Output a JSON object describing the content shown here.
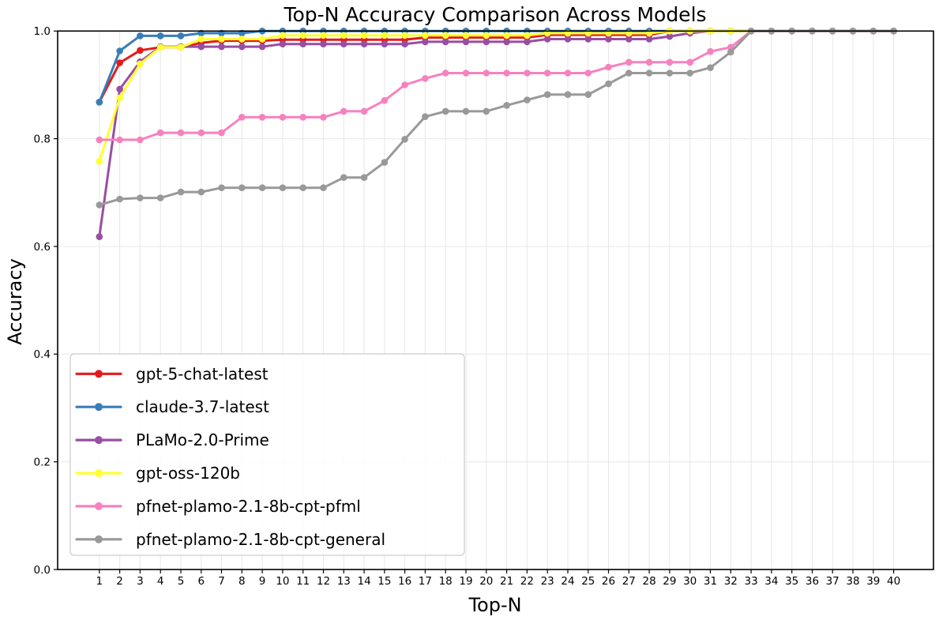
{
  "chart_data": {
    "type": "line",
    "title": "Top-N Accuracy Comparison Across Models",
    "xlabel": "Top-N",
    "ylabel": "Accuracy",
    "marker": "circle",
    "grid": true,
    "legend_position": "lower left",
    "xlim": [
      -1.05,
      41.95
    ],
    "ylim": [
      0.0,
      1.0
    ],
    "x_ticks": [
      1,
      2,
      3,
      4,
      5,
      6,
      7,
      8,
      9,
      10,
      11,
      12,
      13,
      14,
      15,
      16,
      17,
      18,
      19,
      20,
      21,
      22,
      23,
      24,
      25,
      26,
      27,
      28,
      29,
      30,
      31,
      32,
      33,
      34,
      35,
      36,
      37,
      38,
      39,
      40
    ],
    "y_tick_labels": [
      "0.0",
      "0.2",
      "0.4",
      "0.6",
      "0.8",
      "1.0"
    ],
    "y_ticks": [
      0.0,
      0.2,
      0.4,
      0.6,
      0.8,
      1.0
    ],
    "axis_color": "#000000",
    "grid_color": "#e7e7e7",
    "series": [
      {
        "name": "gpt-5-chat-latest",
        "color": "#e41a1c",
        "values": [
          0.868,
          0.941,
          0.964,
          0.97,
          0.97,
          0.978,
          0.982,
          0.982,
          0.982,
          0.984,
          0.984,
          0.984,
          0.984,
          0.984,
          0.984,
          0.984,
          0.988,
          0.988,
          0.988,
          0.988,
          0.988,
          0.988,
          0.993,
          0.993,
          0.993,
          0.993,
          0.993,
          0.993,
          1.0,
          1.0,
          1.0,
          1.0,
          1.0,
          1.0,
          1.0,
          1.0,
          1.0,
          1.0,
          1.0,
          1.0
        ]
      },
      {
        "name": "claude-3.7-latest",
        "color": "#377eb8",
        "values": [
          0.868,
          0.963,
          0.991,
          0.991,
          0.991,
          0.996,
          0.996,
          0.996,
          1.0,
          1.0,
          1.0,
          1.0,
          1.0,
          1.0,
          1.0,
          1.0,
          1.0,
          1.0,
          1.0,
          1.0,
          1.0,
          1.0,
          1.0,
          1.0,
          1.0,
          1.0,
          1.0,
          1.0,
          1.0,
          1.0,
          1.0,
          1.0,
          1.0,
          1.0,
          1.0,
          1.0,
          1.0,
          1.0,
          1.0,
          1.0
        ]
      },
      {
        "name": "PLaMo-2.0-Prime",
        "color": "#984ea3",
        "values": [
          0.618,
          0.892,
          0.943,
          0.971,
          0.971,
          0.971,
          0.971,
          0.971,
          0.971,
          0.976,
          0.976,
          0.976,
          0.976,
          0.976,
          0.976,
          0.976,
          0.98,
          0.98,
          0.98,
          0.98,
          0.98,
          0.98,
          0.985,
          0.985,
          0.985,
          0.985,
          0.985,
          0.985,
          0.99,
          0.996,
          1.0,
          1.0,
          1.0,
          1.0,
          1.0,
          1.0,
          1.0,
          1.0,
          1.0,
          1.0
        ]
      },
      {
        "name": "gpt-oss-120b",
        "color": "#ffff33",
        "values": [
          0.758,
          0.876,
          0.939,
          0.97,
          0.97,
          0.985,
          0.985,
          0.985,
          0.985,
          0.992,
          0.992,
          0.992,
          0.992,
          0.992,
          0.992,
          0.992,
          0.992,
          0.992,
          0.992,
          0.992,
          0.992,
          0.992,
          0.996,
          0.996,
          0.996,
          0.996,
          0.996,
          0.996,
          1.0,
          1.0,
          1.0,
          1.0,
          1.0,
          1.0,
          1.0,
          1.0,
          1.0,
          1.0,
          1.0,
          1.0
        ]
      },
      {
        "name": "pfnet-plamo-2.1-8b-cpt-pfml",
        "color": "#f781bf",
        "values": [
          0.798,
          0.798,
          0.798,
          0.811,
          0.811,
          0.811,
          0.811,
          0.84,
          0.84,
          0.84,
          0.84,
          0.84,
          0.851,
          0.851,
          0.871,
          0.9,
          0.912,
          0.922,
          0.922,
          0.922,
          0.922,
          0.922,
          0.922,
          0.922,
          0.922,
          0.933,
          0.942,
          0.942,
          0.942,
          0.942,
          0.962,
          0.97,
          1.0,
          1.0,
          1.0,
          1.0,
          1.0,
          1.0,
          1.0,
          1.0
        ]
      },
      {
        "name": "pfnet-plamo-2.1-8b-cpt-general",
        "color": "#999999",
        "values": [
          0.677,
          0.688,
          0.69,
          0.69,
          0.701,
          0.701,
          0.709,
          0.709,
          0.709,
          0.709,
          0.709,
          0.709,
          0.728,
          0.728,
          0.756,
          0.799,
          0.841,
          0.851,
          0.851,
          0.851,
          0.862,
          0.872,
          0.882,
          0.882,
          0.882,
          0.902,
          0.922,
          0.922,
          0.922,
          0.922,
          0.932,
          0.961,
          1.0,
          1.0,
          1.0,
          1.0,
          1.0,
          1.0,
          1.0,
          1.0
        ]
      }
    ]
  }
}
